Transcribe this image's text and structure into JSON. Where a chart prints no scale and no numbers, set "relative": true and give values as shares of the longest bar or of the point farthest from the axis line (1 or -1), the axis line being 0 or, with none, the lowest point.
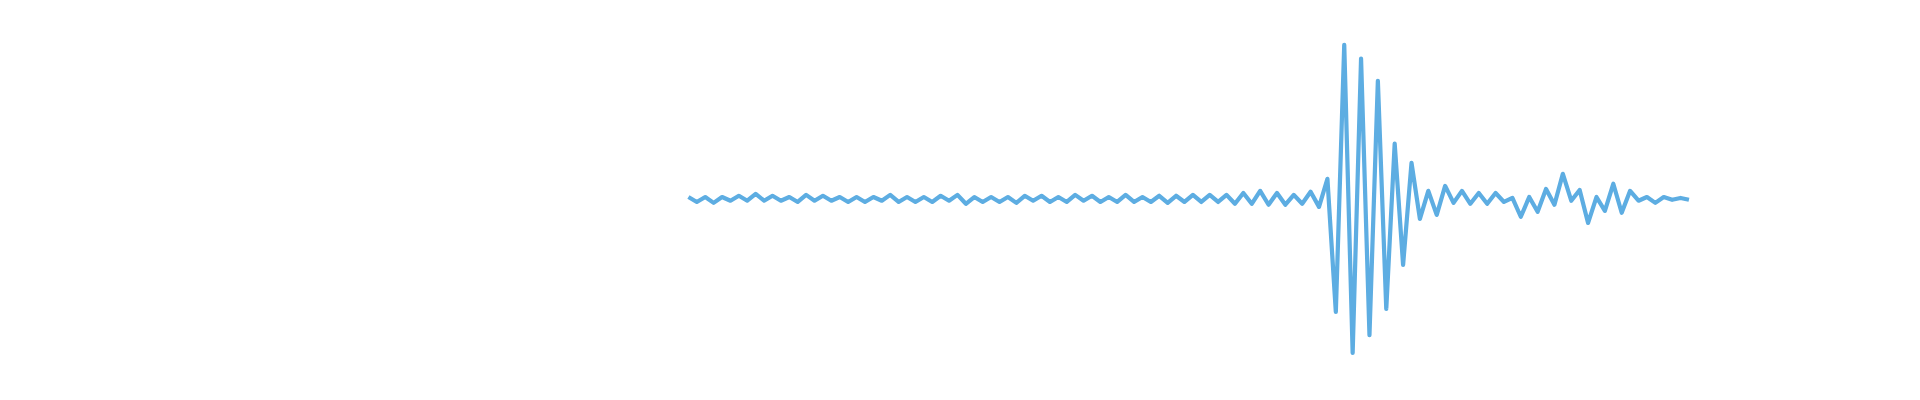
{
  "chart_data": {
    "type": "line",
    "relative": true,
    "color": "#5dade2",
    "categories": [
      null,
      null,
      null,
      null,
      null,
      null,
      null,
      null,
      null,
      null,
      null,
      null,
      null,
      null,
      null,
      null,
      null,
      null,
      null,
      null,
      null,
      null,
      null,
      null,
      null,
      null,
      null,
      null,
      null,
      null,
      null,
      null,
      null,
      null,
      null,
      null,
      null,
      null,
      null,
      null,
      null,
      null,
      null,
      null,
      null,
      null,
      null,
      null,
      null,
      null,
      null,
      null,
      null,
      null,
      null,
      null,
      null,
      null,
      null,
      null,
      null,
      null,
      null,
      null,
      null,
      null,
      null,
      null,
      null,
      null,
      null,
      null,
      null,
      null,
      null,
      null,
      null,
      null,
      null,
      null,
      null,
      null,
      null,
      null,
      null,
      null,
      null,
      null,
      null,
      null,
      null,
      null,
      null,
      null,
      null,
      null,
      null,
      null,
      null,
      null,
      null,
      null,
      null,
      null,
      null,
      null,
      null,
      null,
      null,
      null,
      null,
      null,
      null,
      null,
      null,
      null,
      null,
      null,
      null,
      null
    ],
    "values": [
      0.506,
      0.49,
      0.506,
      0.487,
      0.506,
      0.494,
      0.51,
      0.494,
      0.516,
      0.494,
      0.51,
      0.494,
      0.506,
      0.49,
      0.513,
      0.494,
      0.51,
      0.494,
      0.506,
      0.49,
      0.506,
      0.49,
      0.506,
      0.494,
      0.513,
      0.49,
      0.506,
      0.49,
      0.506,
      0.49,
      0.51,
      0.494,
      0.513,
      0.484,
      0.506,
      0.49,
      0.506,
      0.49,
      0.506,
      0.487,
      0.51,
      0.494,
      0.51,
      0.49,
      0.506,
      0.49,
      0.513,
      0.494,
      0.51,
      0.49,
      0.506,
      0.49,
      0.513,
      0.49,
      0.506,
      0.49,
      0.51,
      0.487,
      0.51,
      0.49,
      0.513,
      0.49,
      0.513,
      0.49,
      0.513,
      0.484,
      0.519,
      0.484,
      0.526,
      0.481,
      0.519,
      0.481,
      0.513,
      0.484,
      0.523,
      0.474,
      0.565,
      0.133,
      1.0,
      0.0,
      0.955,
      0.058,
      0.883,
      0.143,
      0.679,
      0.286,
      0.617,
      0.435,
      0.526,
      0.448,
      0.542,
      0.487,
      0.526,
      0.484,
      0.519,
      0.484,
      0.519,
      0.49,
      0.503,
      0.442,
      0.506,
      0.458,
      0.532,
      0.481,
      0.581,
      0.494,
      0.529,
      0.422,
      0.506,
      0.461,
      0.549,
      0.455,
      0.526,
      0.494,
      0.506,
      0.487,
      0.506,
      0.497,
      0.503,
      0.497
    ]
  }
}
